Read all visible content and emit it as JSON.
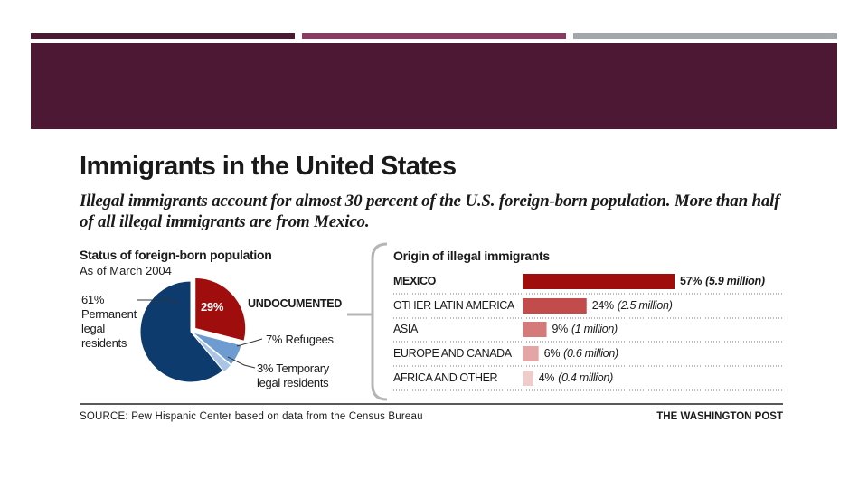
{
  "colors": {
    "bar1": "#4a1932",
    "bar2": "#8c3a62",
    "bar3": "#a3a6aa",
    "banner": "#4d1834",
    "legal": "#0d3b6e",
    "undocumented": "#a00d0d",
    "refugees": "#6e9bd0",
    "temporary": "#a9c4e4"
  },
  "header": {
    "title": "Immigrants in the United States",
    "subtitle": "Illegal immigrants account for almost 30 percent of the U.S. foreign-born population. More than half of all illegal immigrants are from Mexico."
  },
  "chart_data": [
    {
      "type": "pie",
      "title": "Status of foreign-born population",
      "subtitle": "As of March 2004",
      "slices": [
        {
          "label": "Permanent legal residents",
          "value": 61,
          "display": "61%",
          "color": "#0d3b6e"
        },
        {
          "label": "UNDOCUMENTED",
          "value": 29,
          "display": "29%",
          "color": "#a00d0d"
        },
        {
          "label": "Refugees",
          "value": 7,
          "display": "7%",
          "color": "#6e9bd0"
        },
        {
          "label": "Temporary legal residents",
          "value": 3,
          "display": "3%",
          "color": "#a9c4e4"
        }
      ],
      "labels": {
        "legal_pct": "61%",
        "legal_text": [
          "Permanent",
          "legal",
          "residents"
        ],
        "undoc_pct": "29%",
        "undoc_text": "UNDOCUMENTED",
        "refugees": "7% Refugees",
        "temporary": [
          "3% Temporary",
          "legal residents"
        ]
      }
    },
    {
      "type": "bar",
      "orientation": "horizontal",
      "title": "Origin of illegal immigrants",
      "categories": [
        "MEXICO",
        "OTHER LATIN AMERICA",
        "ASIA",
        "EUROPE AND CANADA",
        "AFRICA AND OTHER"
      ],
      "values": [
        57,
        24,
        9,
        6,
        4
      ],
      "value_labels": [
        "57%",
        "24%",
        "9%",
        "6%",
        "4%"
      ],
      "millions_labels": [
        "(5.9 million)",
        "(2.5 million)",
        "(1 million)",
        "(0.6 million)",
        "(0.4 million)"
      ],
      "colors": [
        "#a00d0d",
        "#c24b4b",
        "#d57a7a",
        "#e3a5a5",
        "#efcccc"
      ],
      "unit": "%"
    }
  ],
  "footer": {
    "source": "SOURCE: Pew Hispanic Center based on data from the Census Bureau",
    "credit": "THE WASHINGTON POST"
  }
}
